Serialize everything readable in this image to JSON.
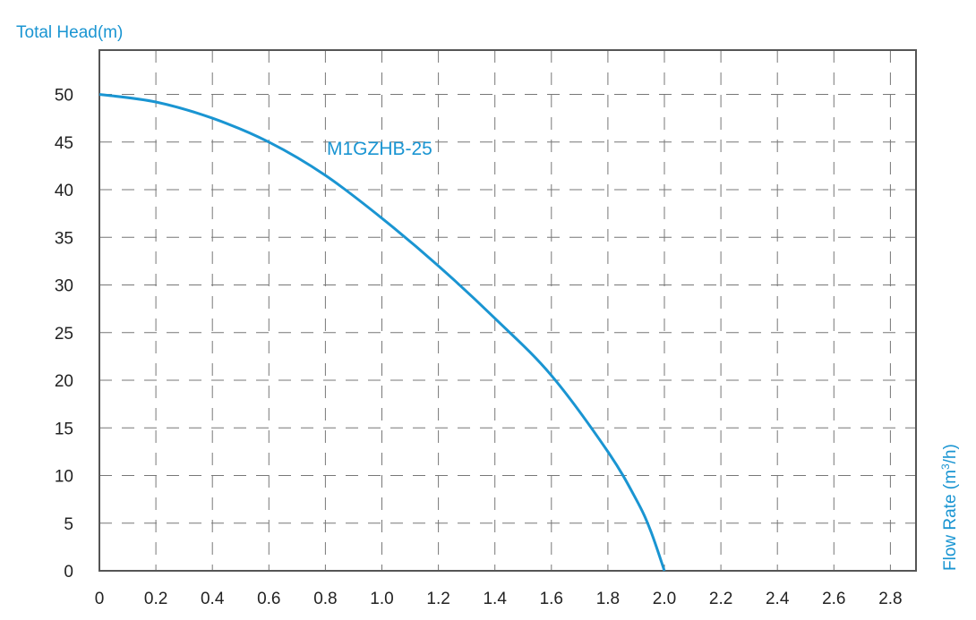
{
  "chart_data": {
    "type": "line",
    "ylabel": "Total Head(m)",
    "xlabel": "Flow Rate (m³/h)",
    "xlabel_main": "Flow Rate (m",
    "xlabel_sup": "3",
    "xlabel_end": "/h)",
    "x_ticks": [
      "0",
      "0.2",
      "0.4",
      "0.6",
      "0.8",
      "1.0",
      "1.2",
      "1.4",
      "1.6",
      "1.8",
      "2.0",
      "2.2",
      "2.4",
      "2.6",
      "2.8"
    ],
    "y_ticks": [
      "0",
      "5",
      "10",
      "15",
      "20",
      "25",
      "30",
      "35",
      "40",
      "45",
      "50"
    ],
    "xlim": [
      0,
      2.9
    ],
    "ylim": [
      0,
      55
    ],
    "grid": true,
    "series": [
      {
        "name": "M1GZHB-25",
        "color": "#1a95d2",
        "x": [
          0,
          0.2,
          0.4,
          0.6,
          0.8,
          1.0,
          1.2,
          1.4,
          1.6,
          1.8,
          1.9,
          1.95,
          2.0
        ],
        "y": [
          50,
          49.2,
          47.5,
          45,
          41.5,
          37,
          32,
          26.5,
          20.5,
          12.5,
          7.5,
          4.3,
          0
        ]
      }
    ],
    "axis_title_color": "#1a95d2"
  }
}
